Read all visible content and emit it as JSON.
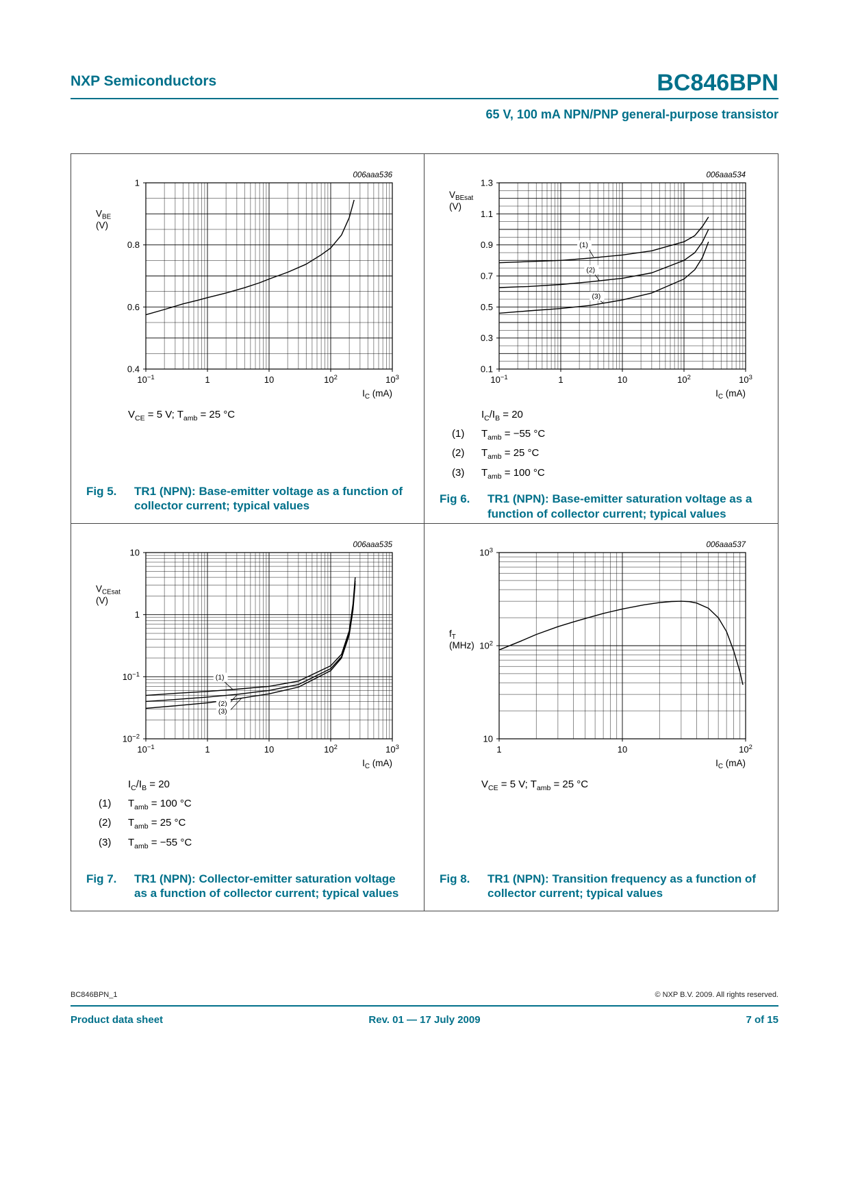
{
  "page": {
    "publisher": "NXP Semiconductors",
    "part_number": "BC846BPN",
    "subtitle": "65 V, 100 mA NPN/PNP general-purpose transistor",
    "accent_color": "#00708a",
    "footer": {
      "doc_id": "BC846BPN_1",
      "copyright": "© NXP B.V. 2009. All rights reserved.",
      "doc_type": "Product data sheet",
      "revision": "Rev. 01 — 17 July 2009",
      "page_info": "7 of 15"
    }
  },
  "figures": [
    {
      "fig_label": "Fig 5.",
      "caption": "TR1 (NPN): Base-emitter voltage as a function of collector current; typical values",
      "conditions": [
        "V_{CE} = 5 V; T_{amb} = 25 °C"
      ]
    },
    {
      "fig_label": "Fig 6.",
      "caption": "TR1 (NPN): Base-emitter saturation voltage as a function of collector current; typical values",
      "conditions": [
        "I_{C}/I_{B} = 20",
        [
          "(1)",
          "T_{amb} = −55 °C"
        ],
        [
          "(2)",
          "T_{amb} = 25 °C"
        ],
        [
          "(3)",
          "T_{amb} = 100 °C"
        ]
      ]
    },
    {
      "fig_label": "Fig 7.",
      "caption": "TR1 (NPN): Collector-emitter saturation voltage as a function of collector current; typical values",
      "conditions": [
        "I_{C}/I_{B} = 20",
        [
          "(1)",
          "T_{amb} = 100 °C"
        ],
        [
          "(2)",
          "T_{amb} = 25 °C"
        ],
        [
          "(3)",
          "T_{amb} = −55 °C"
        ]
      ]
    },
    {
      "fig_label": "Fig 8.",
      "caption": "TR1 (NPN): Transition frequency as a function of collector current; typical values",
      "conditions": [
        "V_{CE} = 5 V; T_{amb} = 25 °C"
      ]
    }
  ],
  "chart_data": [
    {
      "type": "line",
      "plot_code": "006aaa536",
      "title": "Base-emitter voltage vs collector current (typical)",
      "x": {
        "scale": "log",
        "min": 0.1,
        "max": 1000,
        "label": "I_{C} (mA)",
        "ticks": [
          {
            "v": 0.1,
            "t": "10^{−1}"
          },
          {
            "v": 1,
            "t": "1"
          },
          {
            "v": 10,
            "t": "10"
          },
          {
            "v": 100,
            "t": "10^{2}"
          },
          {
            "v": 1000,
            "t": "10^{3}"
          }
        ]
      },
      "y": {
        "scale": "linear",
        "min": 0.4,
        "max": 1.0,
        "minor_step": 0.05,
        "major_step": 0.1,
        "label": [
          "V_{BE}",
          "(V)"
        ],
        "label_pos": 0.13,
        "ticks": [
          {
            "v": 0.4,
            "t": "0.4"
          },
          {
            "v": 0.6,
            "t": "0.6"
          },
          {
            "v": 0.8,
            "t": "0.8"
          },
          {
            "v": 1,
            "t": "1"
          }
        ]
      },
      "series": [
        {
          "name": "VBE typical, VCE = 5 V, Tamb = 25 °C",
          "points": [
            [
              0.1,
              0.575
            ],
            [
              0.2,
              0.592
            ],
            [
              0.4,
              0.61
            ],
            [
              0.7,
              0.622
            ],
            [
              1,
              0.63
            ],
            [
              2,
              0.645
            ],
            [
              4,
              0.662
            ],
            [
              7,
              0.678
            ],
            [
              10,
              0.69
            ],
            [
              20,
              0.712
            ],
            [
              40,
              0.738
            ],
            [
              70,
              0.768
            ],
            [
              100,
              0.79
            ],
            [
              150,
              0.832
            ],
            [
              200,
              0.888
            ],
            [
              240,
              0.945
            ]
          ]
        }
      ],
      "annotations": []
    },
    {
      "type": "line",
      "plot_code": "006aaa534",
      "title": "Base-emitter saturation voltage vs collector current (typical), IC/IB = 20",
      "x": {
        "scale": "log",
        "min": 0.1,
        "max": 1000,
        "label": "I_{C} (mA)",
        "ticks": [
          {
            "v": 0.1,
            "t": "10^{−1}"
          },
          {
            "v": 1,
            "t": "1"
          },
          {
            "v": 10,
            "t": "10"
          },
          {
            "v": 100,
            "t": "10^{2}"
          },
          {
            "v": 1000,
            "t": "10^{3}"
          }
        ]
      },
      "y": {
        "scale": "linear",
        "min": 0.1,
        "max": 1.3,
        "minor_step": 0.05,
        "major_step": 0.1,
        "label": [
          "V_{BEsat}",
          "(V)"
        ],
        "label_pos": 0.03,
        "ticks": [
          {
            "v": 0.1,
            "t": "0.1"
          },
          {
            "v": 0.3,
            "t": "0.3"
          },
          {
            "v": 0.5,
            "t": "0.5"
          },
          {
            "v": 0.7,
            "t": "0.7"
          },
          {
            "v": 0.9,
            "t": "0.9"
          },
          {
            "v": 1.1,
            "t": "1.1"
          },
          {
            "v": 1.3,
            "t": "1.3"
          }
        ]
      },
      "series": [
        {
          "name": "(1) Tamb = −55 °C",
          "points": [
            [
              0.1,
              0.785
            ],
            [
              0.3,
              0.792
            ],
            [
              1,
              0.8
            ],
            [
              3,
              0.815
            ],
            [
              10,
              0.835
            ],
            [
              30,
              0.862
            ],
            [
              100,
              0.92
            ],
            [
              150,
              0.96
            ],
            [
              200,
              1.02
            ],
            [
              250,
              1.08
            ]
          ]
        },
        {
          "name": "(2) Tamb = 25 °C",
          "points": [
            [
              0.1,
              0.625
            ],
            [
              0.3,
              0.632
            ],
            [
              1,
              0.645
            ],
            [
              3,
              0.662
            ],
            [
              10,
              0.685
            ],
            [
              30,
              0.72
            ],
            [
              100,
              0.8
            ],
            [
              150,
              0.85
            ],
            [
              200,
              0.92
            ],
            [
              250,
              1.0
            ]
          ]
        },
        {
          "name": "(3) Tamb = 100 °C",
          "points": [
            [
              0.1,
              0.46
            ],
            [
              0.3,
              0.475
            ],
            [
              1,
              0.49
            ],
            [
              3,
              0.51
            ],
            [
              10,
              0.545
            ],
            [
              30,
              0.59
            ],
            [
              100,
              0.68
            ],
            [
              150,
              0.74
            ],
            [
              200,
              0.82
            ],
            [
              250,
              0.92
            ]
          ]
        }
      ],
      "annotations": [
        {
          "t": "(1)",
          "x": 2.0,
          "y": 0.885,
          "line": [
            [
              2.9,
              0.868
            ],
            [
              3.4,
              0.823
            ]
          ]
        },
        {
          "t": "(2)",
          "x": 2.6,
          "y": 0.725,
          "line": [
            [
              3.6,
              0.708
            ],
            [
              4.2,
              0.672
            ]
          ]
        },
        {
          "t": "(3)",
          "x": 3.2,
          "y": 0.555,
          "line": [
            [
              4.4,
              0.538
            ],
            [
              5.0,
              0.524
            ]
          ]
        }
      ]
    },
    {
      "type": "line",
      "plot_code": "006aaa535",
      "title": "Collector-emitter saturation voltage vs collector current (typical), IC/IB = 20",
      "x": {
        "scale": "log",
        "min": 0.1,
        "max": 1000,
        "label": "I_{C} (mA)",
        "ticks": [
          {
            "v": 0.1,
            "t": "10^{−1}"
          },
          {
            "v": 1,
            "t": "1"
          },
          {
            "v": 10,
            "t": "10"
          },
          {
            "v": 100,
            "t": "10^{2}"
          },
          {
            "v": 1000,
            "t": "10^{3}"
          }
        ]
      },
      "y": {
        "scale": "log",
        "min": 0.01,
        "max": 10,
        "label": [
          "V_{CEsat}",
          "(V)"
        ],
        "label_pos": 0.16,
        "ticks": [
          {
            "v": 0.01,
            "t": "10^{−2}"
          },
          {
            "v": 0.1,
            "t": "10^{−1}"
          },
          {
            "v": 1,
            "t": "1"
          },
          {
            "v": 10,
            "t": "10"
          }
        ]
      },
      "series": [
        {
          "name": "(1) Tamb = 100 °C",
          "points": [
            [
              0.1,
              0.05
            ],
            [
              0.3,
              0.054
            ],
            [
              1,
              0.058
            ],
            [
              3,
              0.063
            ],
            [
              10,
              0.07
            ],
            [
              30,
              0.085
            ],
            [
              100,
              0.15
            ],
            [
              150,
              0.23
            ],
            [
              200,
              0.55
            ],
            [
              230,
              1.5
            ],
            [
              250,
              4.0
            ]
          ]
        },
        {
          "name": "(2) Tamb = 25 °C",
          "points": [
            [
              0.1,
              0.04
            ],
            [
              0.3,
              0.043
            ],
            [
              1,
              0.047
            ],
            [
              3,
              0.052
            ],
            [
              10,
              0.06
            ],
            [
              30,
              0.075
            ],
            [
              100,
              0.135
            ],
            [
              150,
              0.21
            ],
            [
              200,
              0.5
            ],
            [
              230,
              1.3
            ],
            [
              250,
              3.5
            ]
          ]
        },
        {
          "name": "(3) Tamb = −55 °C",
          "points": [
            [
              0.1,
              0.031
            ],
            [
              0.3,
              0.034
            ],
            [
              1,
              0.038
            ],
            [
              3,
              0.044
            ],
            [
              10,
              0.053
            ],
            [
              30,
              0.068
            ],
            [
              100,
              0.125
            ],
            [
              150,
              0.2
            ],
            [
              200,
              0.47
            ],
            [
              230,
              1.2
            ],
            [
              250,
              3.2
            ]
          ]
        }
      ],
      "annotations": [
        {
          "t": "(1)",
          "x": 1.35,
          "y": 0.09,
          "line": [
            [
              1.9,
              0.082
            ],
            [
              2.6,
              0.062
            ]
          ]
        },
        {
          "t": "(2)",
          "x": 1.5,
          "y": 0.034,
          "line": [
            [
              2.2,
              0.036
            ],
            [
              3.0,
              0.051
            ]
          ]
        },
        {
          "t": "(3)",
          "x": 1.5,
          "y": 0.0255,
          "line": [
            [
              2.2,
              0.027
            ],
            [
              3.6,
              0.0455
            ]
          ]
        }
      ]
    },
    {
      "type": "line",
      "plot_code": "006aaa537",
      "title": "Transition frequency vs collector current (typical), VCE = 5 V, Tamb = 25 °C",
      "x": {
        "scale": "log",
        "min": 1,
        "max": 100,
        "label": "I_{C} (mA)",
        "ticks": [
          {
            "v": 1,
            "t": "1"
          },
          {
            "v": 10,
            "t": "10"
          },
          {
            "v": 100,
            "t": "10^{2}"
          }
        ]
      },
      "y": {
        "scale": "log",
        "min": 10,
        "max": 1000,
        "label": [
          "f_{T}",
          "(MHz)"
        ],
        "label_pos": 0.4,
        "ticks": [
          {
            "v": 10,
            "t": "10"
          },
          {
            "v": 100,
            "t": "10^{2}"
          },
          {
            "v": 1000,
            "t": "10^{3}"
          }
        ]
      },
      "series": [
        {
          "name": "fT typical",
          "points": [
            [
              1,
              90
            ],
            [
              1.5,
              112
            ],
            [
              2,
              132
            ],
            [
              3,
              160
            ],
            [
              4,
              180
            ],
            [
              5,
              196
            ],
            [
              7,
              222
            ],
            [
              10,
              248
            ],
            [
              15,
              275
            ],
            [
              20,
              290
            ],
            [
              25,
              298
            ],
            [
              30,
              300
            ],
            [
              35,
              297
            ],
            [
              40,
              287
            ],
            [
              50,
              252
            ],
            [
              60,
              200
            ],
            [
              70,
              142
            ],
            [
              80,
              88
            ],
            [
              90,
              52
            ],
            [
              95,
              38
            ]
          ]
        }
      ],
      "annotations": []
    }
  ]
}
